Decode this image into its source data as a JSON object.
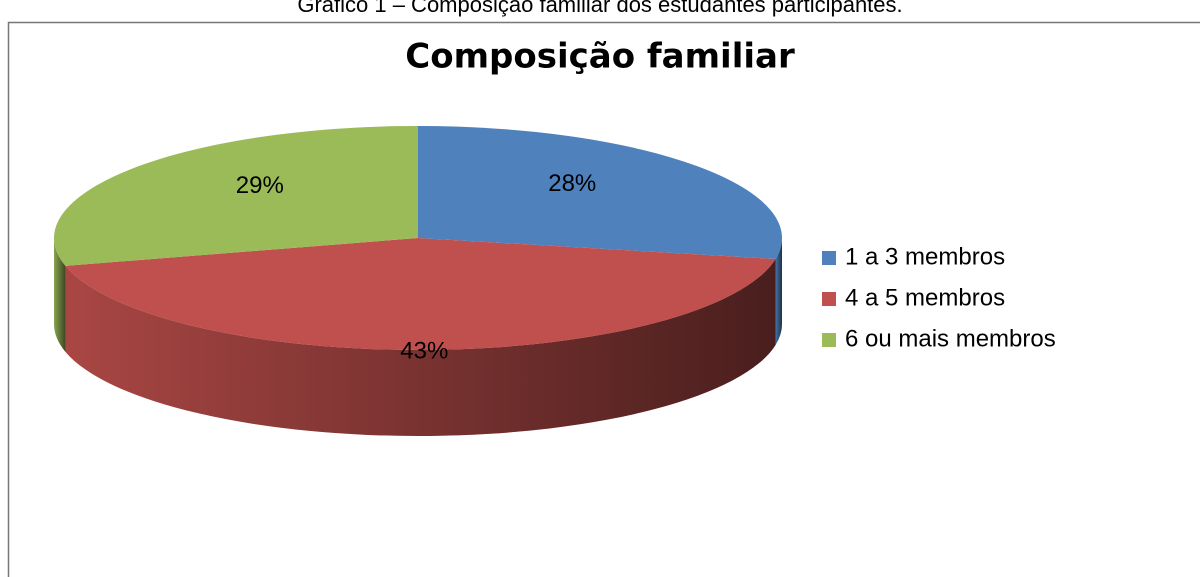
{
  "caption": "Gráfico 1 – Composição familiar dos estudantes participantes.",
  "chart_data": {
    "type": "pie",
    "title": "Composição familiar",
    "categories": [
      "1 a 3 membros",
      "4 a 5 membros",
      "6 ou mais membros"
    ],
    "values": [
      28,
      43,
      29
    ],
    "value_labels": [
      "28%",
      "43%",
      "29%"
    ],
    "colors": [
      "#4f81bd",
      "#c0504d",
      "#9bbb59"
    ],
    "legend": "right"
  }
}
